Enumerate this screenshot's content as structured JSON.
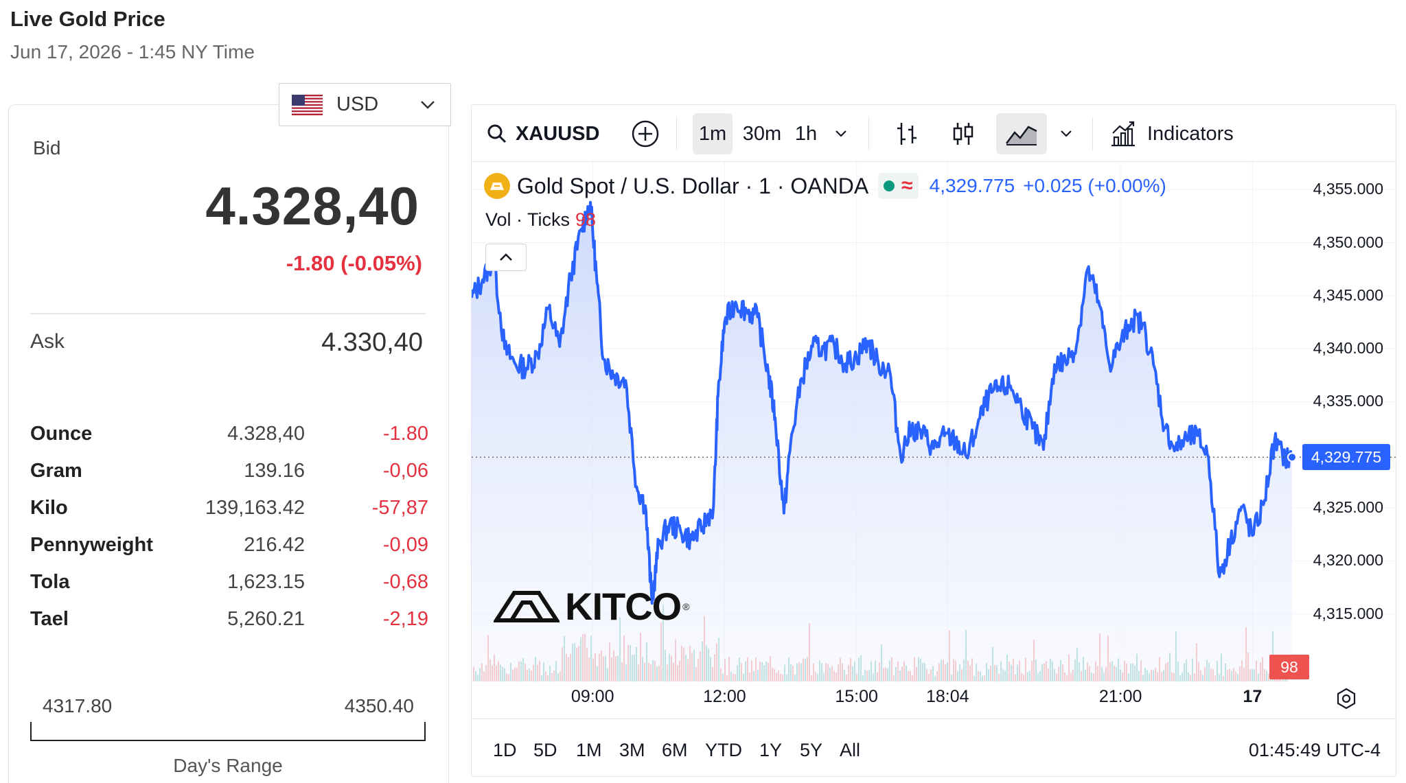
{
  "header": {
    "title": "Live Gold Price",
    "subtitle": "Jun 17, 2026 - 1:45 NY Time"
  },
  "currency": {
    "code": "USD",
    "flag_icon": "us-flag-icon"
  },
  "quote": {
    "bid_label": "Bid",
    "bid_value": "4.328,40",
    "bid_change": "-1.80 (-0.05%)",
    "ask_label": "Ask",
    "ask_value": "4.330,40"
  },
  "units": [
    {
      "name": "Ounce",
      "price": "4.328,40",
      "change": "-1.80"
    },
    {
      "name": "Gram",
      "price": "139.16",
      "change": "-0,06"
    },
    {
      "name": "Kilo",
      "price": "139,163.42",
      "change": "-57,87"
    },
    {
      "name": "Pennyweight",
      "price": "216.42",
      "change": "-0,09"
    },
    {
      "name": "Tola",
      "price": "1,623.15",
      "change": "-0,68"
    },
    {
      "name": "Tael",
      "price": "5,260.21",
      "change": "-2,19"
    }
  ],
  "day_range": {
    "low": "4317.80",
    "high": "4350.40",
    "label": "Day's Range"
  },
  "chart_widget": {
    "symbol": "XAUUSD",
    "intervals": [
      "1m",
      "30m",
      "1h"
    ],
    "active_interval": "1m",
    "indicators_label": "Indicators",
    "legend": {
      "title": "Gold Spot / U.S. Dollar · 1 · OANDA",
      "price": "4,329.775",
      "change": "+0.025 (+0.00%)"
    },
    "vol_label": "Vol · Ticks",
    "vol_value": "98",
    "current_price_tag": "4,329.775",
    "vol_tag": "98",
    "watermark": "KITCO",
    "ranges": [
      "1D",
      "5D",
      "1M",
      "3M",
      "6M",
      "YTD",
      "1Y",
      "5Y",
      "All"
    ],
    "clock": "01:45:49 UTC-4",
    "colors": {
      "line": "#2962ff",
      "up_volume": "#26a69a",
      "down_volume": "#ef5350",
      "price_tag": "#2962ff"
    }
  },
  "chart_data": {
    "type": "area",
    "title": "Gold Spot / U.S. Dollar · 1 · OANDA",
    "y_ticks": [
      "4,355.000",
      "4,350.000",
      "4,345.000",
      "4,340.000",
      "4,335.000",
      "4,325.000",
      "4,320.000",
      "4,315.000"
    ],
    "y_tick_values": [
      4355,
      4350,
      4345,
      4340,
      4335,
      4325,
      4320,
      4315
    ],
    "ylim": [
      4312.2,
      4357.6
    ],
    "x_ticks": [
      "09:00",
      "12:00",
      "15:00",
      "18:04",
      "21:00",
      "17"
    ],
    "x_tick_hours": [
      9,
      12,
      15,
      17.07,
      21,
      24
    ],
    "xlim": [
      6.25,
      24.9
    ],
    "last_price": 4329.775,
    "series": [
      {
        "x": [
          6.25,
          6.5,
          6.75,
          7.0,
          7.25,
          7.5,
          7.75,
          8.0,
          8.25,
          8.5,
          8.75,
          8.95,
          9.1,
          9.25,
          9.5,
          9.75,
          10.0,
          10.2,
          10.35,
          10.5,
          10.75,
          11.0,
          11.25,
          11.5,
          11.75,
          11.85,
          12.0,
          12.25,
          12.5,
          12.75,
          13.0,
          13.15,
          13.35,
          13.5,
          13.75,
          14.0,
          14.25,
          14.5,
          14.75,
          15.0,
          15.25,
          15.5,
          15.75,
          16.0,
          16.25,
          16.5,
          16.75,
          17.0,
          17.25,
          17.5,
          17.75,
          18.0,
          18.25,
          18.5,
          18.75,
          19.0,
          19.25,
          19.5,
          19.75,
          20.0,
          20.25,
          20.5,
          20.75,
          21.0,
          21.25,
          21.5,
          21.75,
          22.0,
          22.25,
          22.5,
          22.75,
          23.0,
          23.25,
          23.5,
          23.75,
          24.0,
          24.25,
          24.5,
          24.75,
          24.9
        ],
        "values": [
          4344.8,
          4346.5,
          4348.5,
          4340.0,
          4338.5,
          4338.2,
          4339.5,
          4343.8,
          4340.2,
          4346.8,
          4351.3,
          4353.8,
          4346.2,
          4339.0,
          4337.5,
          4337.0,
          4327.0,
          4325.2,
          4316.0,
          4321.6,
          4323.5,
          4322.8,
          4322.0,
          4323.2,
          4325.2,
          4335.5,
          4342.5,
          4344.4,
          4343.6,
          4343.0,
          4337.5,
          4333.5,
          4324.5,
          4331.0,
          4337.2,
          4340.2,
          4340.0,
          4340.2,
          4338.6,
          4339.2,
          4340.7,
          4338.5,
          4338.0,
          4330.0,
          4332.5,
          4332.0,
          4330.6,
          4331.8,
          4331.3,
          4329.8,
          4332.8,
          4335.5,
          4336.2,
          4336.5,
          4334.5,
          4332.5,
          4330.5,
          4338.5,
          4338.8,
          4340.3,
          4347.5,
          4344.5,
          4338.5,
          4340.5,
          4342.8,
          4342.4,
          4338.5,
          4332.6,
          4330.5,
          4331.5,
          4331.8,
          4329.8,
          4318.5,
          4321.8,
          4325.1,
          4322.4,
          4325.3,
          4331.3,
          4329.6,
          4329.775
        ]
      }
    ],
    "grid": true,
    "legend": "top-left"
  }
}
